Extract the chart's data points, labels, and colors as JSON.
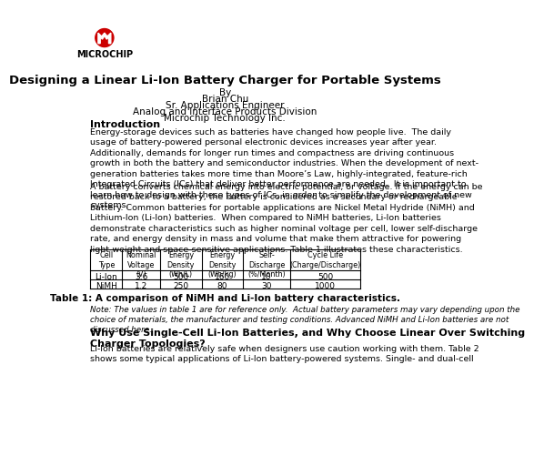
{
  "bg_color": "#ffffff",
  "title": "Designing a Linear Li-Ion Battery Charger for Portable Systems",
  "by_lines": [
    "By",
    "Brian Chu",
    "Sr. Applications Engineer",
    "Analog and Interface Products Division",
    "Microchip Technology Inc."
  ],
  "section1_heading": "Introduction",
  "section1_para1": "Energy-storage devices such as batteries have changed how people live.  The daily\nusage of battery-powered personal electronic devices increases year after year.\nAdditionally, demands for longer run times and compactness are driving continuous\ngrowth in both the battery and semiconductor industries. When the development of next-\ngeneration batteries takes more time than Moore’s Law, highly-integrated, feature-rich\nIntegrated Circuits (ICs) that deliver better performance are needed.  It is important to\nlearn how to design with these types of ICs, in order to simplify the development of new\nsystems.",
  "section1_para2": "A battery converts chemical energy into electric potential, or voltage. If the energy can be\nrestored back to a battery, the battery is considered as a secondary or rechargeable\nbattery. Common batteries for portable applications are Nickel Metal Hydride (NiMH) and\nLithium-Ion (Li-Ion) batteries.  When compared to NiMH batteries, Li-Ion batteries\ndemonstrate characteristics such as higher nominal voltage per cell, lower self-discharge\nrate, and energy density in mass and volume that make them attractive for powering\nlight-weight and space-sensitive applications. Table 1 illustrates these characteristics.",
  "table_headers": [
    "Cell\nType",
    "Nominal\nVoltage\n(V)",
    "Energy\nDensity\n(Wh/L)",
    "Energy\nDensity\n(Wh/kg)",
    "Self-\nDischarge\n(%/Month)",
    "Cycle Life\n(Charge/Discharge)"
  ],
  "table_row1": [
    "Li-Ion",
    "3.6",
    "500",
    "160",
    "10",
    "500"
  ],
  "table_row2": [
    "NiMH",
    "1.2",
    "250",
    "80",
    "30",
    "1000"
  ],
  "table_caption": "Table 1: A comparison of NiMH and Li-Ion battery characteristics.",
  "note_text": "Note: The values in table 1 are for reference only.  Actual battery parameters may vary depending upon the\nchoice of materials, the manufacturer and testing conditions. Advanced NiMH and Li-Ion batteries are not\ndiscussed here.",
  "section2_heading": "Why Use Single-Cell Li-Ion Batteries, and Why Choose Linear Over Switching\nCharger Topologies?",
  "section2_para1": "Li-Ion batteries are relatively safe when designers use caution working with them. Table 2\nshows some typical applications of Li-Ion battery-powered systems. Single- and dual-cell",
  "logo_color": "#cc0000",
  "text_color": "#000000"
}
